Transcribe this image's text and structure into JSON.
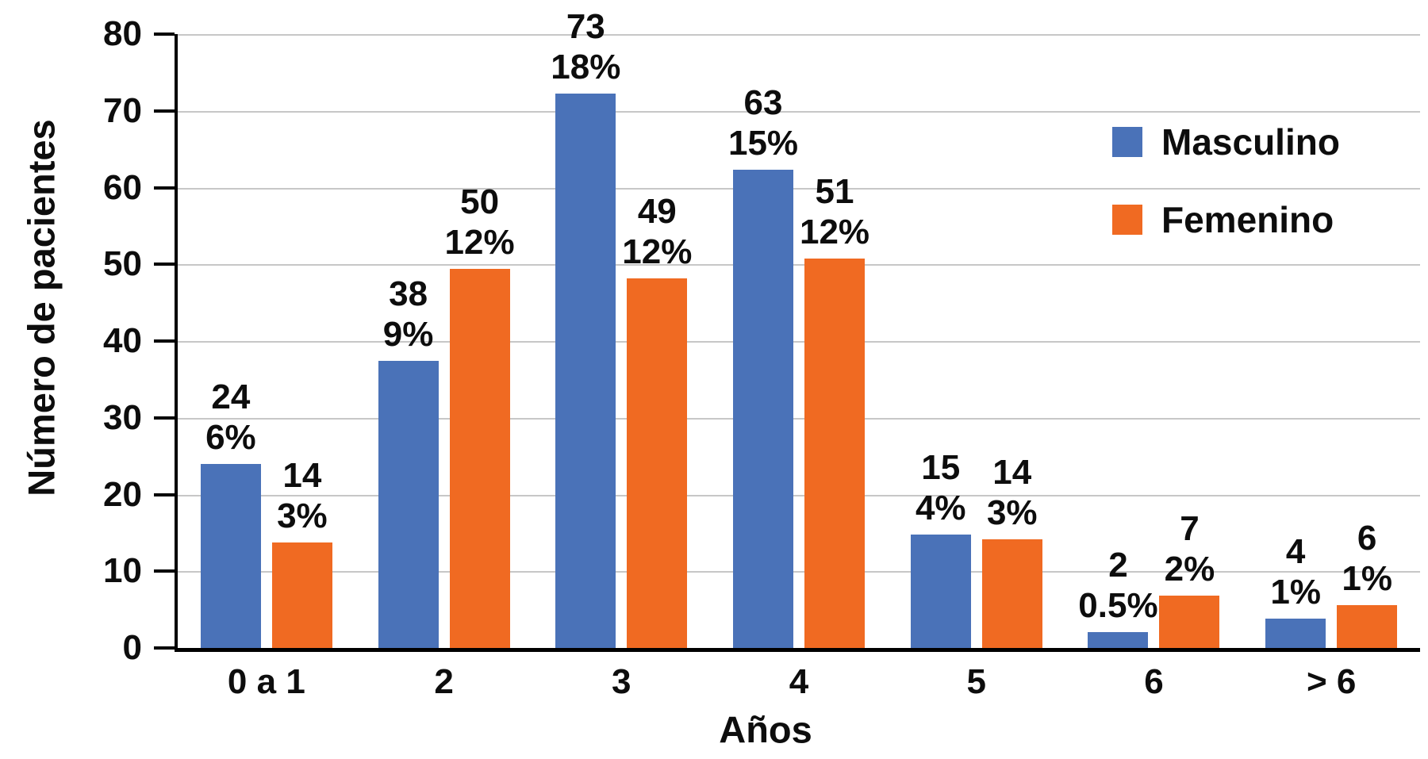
{
  "chart_data": {
    "type": "bar",
    "title": "",
    "xlabel": "Años",
    "ylabel": "Número de pacientes",
    "categories": [
      "0 a 1",
      "2",
      "3",
      "4",
      "5",
      "6",
      "> 6"
    ],
    "series": [
      {
        "name": "Masculino",
        "color": "#4A72B8",
        "values": [
          24,
          38,
          73,
          63,
          15,
          2,
          4
        ],
        "percents": [
          "6%",
          "9%",
          "18%",
          "15%",
          "4%",
          "0.5%",
          "1%"
        ],
        "draw_heights": [
          24,
          37.4,
          72.2,
          62.3,
          14.8,
          2.1,
          3.8
        ]
      },
      {
        "name": "Femenino",
        "color": "#F06A22",
        "values": [
          14,
          50,
          49,
          51,
          14,
          7,
          6
        ],
        "percents": [
          "3%",
          "12%",
          "12%",
          "12%",
          "3%",
          "2%",
          "1%"
        ],
        "draw_heights": [
          13.7,
          49.4,
          48.2,
          50.7,
          14.2,
          6.8,
          5.6
        ]
      }
    ],
    "ylim": [
      0,
      80
    ],
    "ytick_step": 10,
    "yticks": [
      "0",
      "10",
      "20",
      "30",
      "40",
      "50",
      "60",
      "70",
      "80"
    ],
    "grid": "horizontal",
    "legend_position": "upper-right"
  },
  "colors": {
    "masculino": "#4A72B8",
    "femenino": "#F06A22",
    "gridline": "#C7C7C7",
    "axis": "#000000",
    "text": "#0D0D0D",
    "background": "#FFFFFF"
  }
}
